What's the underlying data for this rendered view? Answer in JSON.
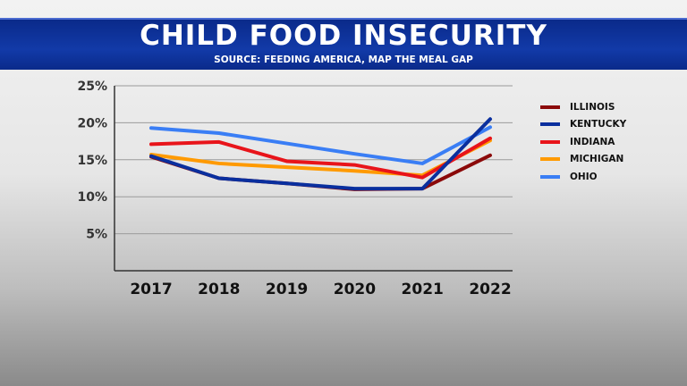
{
  "header": {
    "title": "CHILD FOOD INSECURITY",
    "source": "SOURCE: FEEDING AMERICA, MAP THE MEAL GAP"
  },
  "chart_data": {
    "type": "line",
    "title": "CHILD FOOD INSECURITY",
    "subtitle": "SOURCE: FEEDING AMERICA, MAP THE MEAL GAP",
    "categories": [
      "2017",
      "2018",
      "2019",
      "2020",
      "2021",
      "2022"
    ],
    "ylim": [
      0,
      25
    ],
    "yticks": [
      "5%",
      "10%",
      "15%",
      "20%",
      "25%"
    ],
    "ytick_values": [
      5,
      10,
      15,
      20,
      25
    ],
    "grid": true,
    "legend_position": "right",
    "series": [
      {
        "name": "ILLINOIS",
        "color": "#8b0a0a",
        "values": [
          15.4,
          12.5,
          11.8,
          11.0,
          11.1,
          15.6
        ]
      },
      {
        "name": "KENTUCKY",
        "color": "#0a2f9e",
        "values": [
          15.5,
          12.5,
          11.8,
          11.1,
          11.1,
          20.5
        ]
      },
      {
        "name": "INDIANA",
        "color": "#e8141a",
        "values": [
          17.1,
          17.4,
          14.8,
          14.3,
          12.6,
          17.9
        ]
      },
      {
        "name": "MICHIGAN",
        "color": "#ff9a00",
        "values": [
          15.7,
          14.5,
          14.0,
          13.5,
          12.9,
          17.6
        ]
      },
      {
        "name": "OHIO",
        "color": "#3a7ef5",
        "values": [
          19.3,
          18.6,
          17.2,
          15.8,
          14.5,
          19.4
        ]
      }
    ]
  }
}
